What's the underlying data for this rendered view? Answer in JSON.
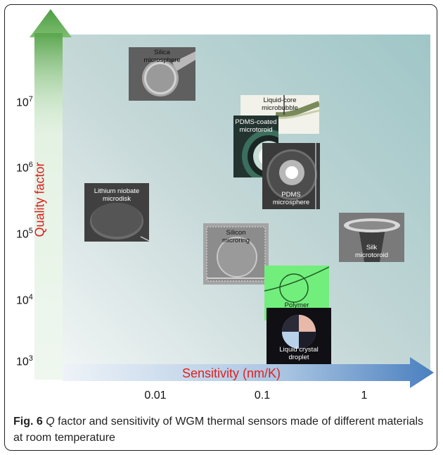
{
  "yaxis": {
    "label": "Quality factor",
    "ticks": [
      {
        "base": "10",
        "exp": "7"
      },
      {
        "base": "10",
        "exp": "6"
      },
      {
        "base": "10",
        "exp": "5"
      },
      {
        "base": "10",
        "exp": "4"
      },
      {
        "base": "10",
        "exp": "3"
      }
    ]
  },
  "xaxis": {
    "label": "Sensitivity (nm/K)",
    "ticks": [
      "0.01",
      "0.1",
      "1"
    ]
  },
  "thumbnails": {
    "silica": {
      "line1": "Silica",
      "line2": "microsphere"
    },
    "microbubble": {
      "line1": "Liquid-core",
      "line2": "microbubble"
    },
    "pdms_toroid": {
      "line1": "PDMS-coated",
      "line2": "microtoroid"
    },
    "pdms_sphere": {
      "line1": "PDMS",
      "line2": "microsphere"
    },
    "lithium": {
      "line1": "Lithium niobate",
      "line2": "microdisk"
    },
    "silicon": {
      "line1": "Silicon",
      "line2": "microring"
    },
    "silk": {
      "line1": "Silk",
      "line2": "microtoroid"
    },
    "polymer": {
      "line1": "Polymer",
      "line2": "microknot"
    },
    "liquid_crystal": {
      "line1": "Liquid crystal",
      "line2": "droplet"
    }
  },
  "caption": {
    "fig": "Fig. 6",
    "q": "Q",
    "text": " factor and sensitivity of WGM thermal sensors made of different materials at room temperature"
  },
  "colors": {
    "y_arrow": "#5aa64d",
    "x_arrow": "#4a7fbf",
    "axis_label": "#e0201e"
  }
}
